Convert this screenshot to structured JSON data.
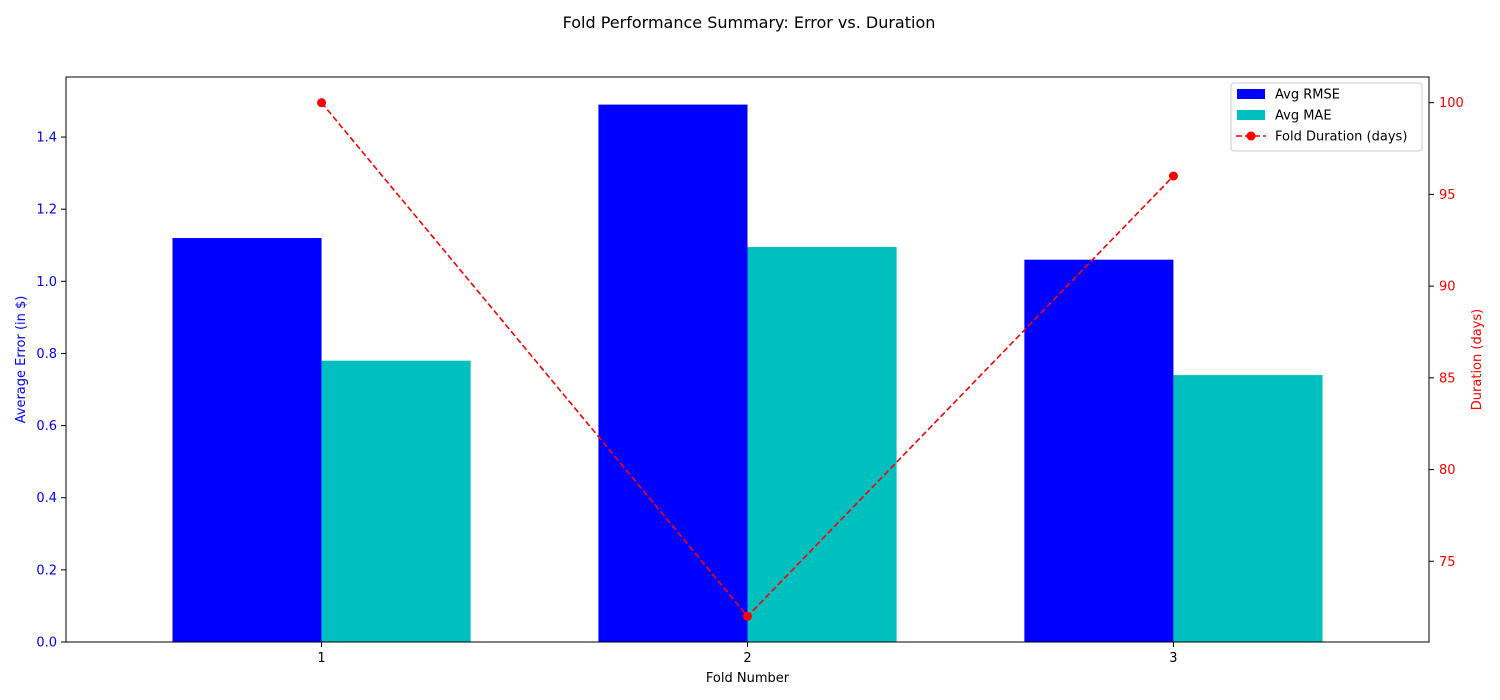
{
  "chart_data": {
    "type": "bar",
    "title": "Fold Performance Summary: Error vs. Duration",
    "xlabel": "Fold Number",
    "ylabel": "Average Error (in $)",
    "y2label": "Duration (days)",
    "categories": [
      "1",
      "2",
      "3"
    ],
    "ylim": [
      0,
      1.5665
    ],
    "y2lim": [
      70.6,
      101.4
    ],
    "yticks": [
      "0.0",
      "0.2",
      "0.4",
      "0.6",
      "0.8",
      "1.0",
      "1.2",
      "1.4"
    ],
    "y2ticks": [
      "75",
      "80",
      "85",
      "90",
      "95",
      "100"
    ],
    "grid": false,
    "legend_position": "top-right",
    "series": [
      {
        "name": "Avg RMSE",
        "kind": "bar",
        "axis": "left",
        "color": "#0000ff",
        "values": [
          1.12,
          1.49,
          1.06
        ]
      },
      {
        "name": "Avg MAE",
        "kind": "bar",
        "axis": "left",
        "color": "#00bfbf",
        "values": [
          0.78,
          1.095,
          0.74
        ]
      },
      {
        "name": "Fold Duration (days)",
        "kind": "line",
        "axis": "right",
        "style": "dashed",
        "marker": "circle",
        "color": "#ff0000",
        "values": [
          100,
          72,
          96
        ]
      }
    ],
    "colors": {
      "left_axis": "#0000ff",
      "right_axis": "#ff0000"
    }
  }
}
